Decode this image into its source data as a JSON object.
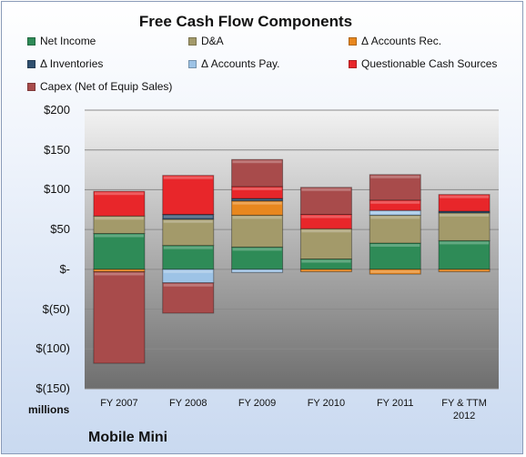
{
  "chart_data": {
    "type": "bar",
    "stacked": true,
    "title": "Free Cash Flow Components",
    "units_label": "millions",
    "company": "Mobile Mini",
    "ylim": [
      -150,
      200
    ],
    "yticks": [
      200,
      150,
      100,
      50,
      0,
      -50,
      -100,
      -150
    ],
    "ytick_labels": [
      "$200",
      "$150",
      "$100",
      "$50",
      "$-",
      "$(50)",
      "$(100)",
      "$(150)"
    ],
    "categories": [
      "FY 2007",
      "FY 2008",
      "FY 2009",
      "FY 2010",
      "FY 2011",
      "FY & TTM 2012"
    ],
    "grid": true,
    "legend_position": "top",
    "series": [
      {
        "name": "Net Income",
        "color": "#2e8b57",
        "values": [
          45,
          30,
          28,
          13,
          33,
          36
        ]
      },
      {
        "name": "D&A",
        "color": "#a39a6a",
        "values": [
          22,
          33,
          40,
          38,
          35,
          35
        ]
      },
      {
        "name": "Δ Accounts Rec.",
        "color": "#e8871e",
        "values": [
          -3,
          0,
          18,
          -3,
          -6,
          -3
        ]
      },
      {
        "name": "Δ Inventories",
        "color": "#2f4f6f",
        "values": [
          0,
          6,
          3,
          0,
          0,
          2
        ]
      },
      {
        "name": "Δ Accounts Pay.",
        "color": "#9dc3e6",
        "values": [
          0,
          -17,
          -4,
          0,
          6,
          0
        ]
      },
      {
        "name": "Questionable Cash Sources",
        "color": "#e8262a",
        "values": [
          31,
          49,
          15,
          18,
          13,
          21
        ]
      },
      {
        "name": "Capex (Net of Equip Sales)",
        "color": "#a84b4b",
        "values": [
          -115,
          -38,
          34,
          34,
          32,
          0
        ]
      }
    ]
  }
}
